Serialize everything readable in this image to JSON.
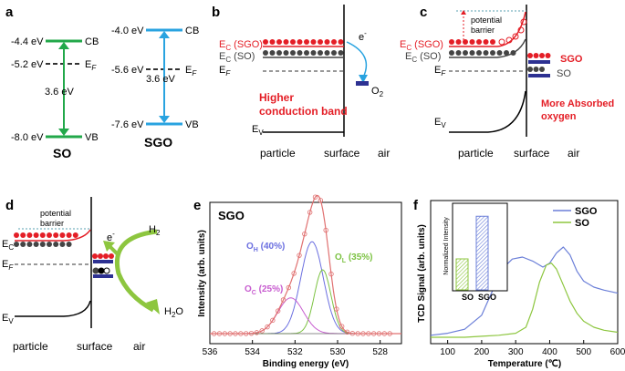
{
  "panels": {
    "a": {
      "letter": "a",
      "so": {
        "cb": "-4.4 eV",
        "ef": "-5.2 eV",
        "vb": "-8.0 eV",
        "gap": "3.6 eV",
        "name": "SO"
      },
      "sgo": {
        "cb": "-4.0 eV",
        "ef": "-5.6 eV",
        "vb": "-7.6 eV",
        "gap": "3.6 eV",
        "name": "SGO"
      },
      "cb_label": "CB",
      "ef_label": "E",
      "ef_sub": "F",
      "vb_label": "VB"
    },
    "b": {
      "letter": "b",
      "ec_sgo": "E",
      "ec_sgo_sub": "C",
      "ec_sgo_suffix": " (SGO)",
      "ec_so": "E",
      "ec_so_sub": "C",
      "ec_so_suffix": " (SO)",
      "ef": "E",
      "ef_sub": "F",
      "ev": "E",
      "ev_sub": "V",
      "electron": "e",
      "electron_sup": "-",
      "o2": "O",
      "o2_sub": "2",
      "note_line1": "Higher",
      "note_line2": "conduction band",
      "x_particle": "particle",
      "x_surface": "surface",
      "x_air": "air"
    },
    "c": {
      "letter": "c",
      "barrier_line1": "potential",
      "barrier_line2": "barrier",
      "ec_sgo": "E",
      "ec_sgo_sub": "C",
      "ec_sgo_suffix": " (SGO)",
      "ec_so": "E",
      "ec_so_sub": "C",
      "ec_so_suffix": " (SO)",
      "ef": "E",
      "ef_sub": "F",
      "ev": "E",
      "ev_sub": "V",
      "sgo_label": "SGO",
      "so_label": "SO",
      "note_line1": "More Absorbed",
      "note_line2": "oxygen",
      "x_particle": "particle",
      "x_surface": "surface",
      "x_air": "air"
    },
    "d": {
      "letter": "d",
      "barrier_line1": "potential",
      "barrier_line2": "barrier",
      "ec": "E",
      "ec_sub": "C",
      "ef": "E",
      "ef_sub": "F",
      "ev": "E",
      "ev_sub": "V",
      "electron": "e",
      "electron_sup": "-",
      "h2": "H",
      "h2_sub": "2",
      "h2o_a": "H",
      "h2o_sub": "2",
      "h2o_b": "O",
      "x_particle": "particle",
      "x_surface": "surface",
      "x_air": "air"
    },
    "e": {
      "letter": "e",
      "title": "SGO",
      "ylabel": "Intensity (arb. units)",
      "xlabel": "Binding energy (eV)",
      "oh_a": "O",
      "oh_sub": "H",
      "oh_b": " (40%)",
      "ol_a": "O",
      "ol_sub": "L",
      "ol_b": " (35%)",
      "oc_a": "O",
      "oc_sub": "C",
      "oc_b": " (25%)",
      "ticks": [
        "536",
        "534",
        "532",
        "530",
        "528"
      ]
    },
    "f": {
      "letter": "f",
      "ylabel": "TCD Signal (arb. units)",
      "xlabel": "Temperature (℃)",
      "legend_sgo": "SGO",
      "legend_so": "SO",
      "inset_ylabel": "Normalized Intensity",
      "inset_x_so": "SO",
      "inset_x_sgo": "SGO",
      "ticks": [
        "100",
        "200",
        "300",
        "400",
        "500",
        "600"
      ]
    }
  },
  "colors": {
    "green": "#22a84a",
    "blue": "#29a3e0",
    "red": "#e41e26",
    "navy": "#2d3192",
    "grey": "#444444",
    "ygreen": "#8dc63f",
    "sgo_line": "#6b7fd8",
    "so_line": "#8dc63f",
    "oh": "#6b6fe0",
    "ol": "#7cc242",
    "oc": "#c75ccf",
    "fit": "#e07070"
  },
  "chart_data": [
    {
      "type": "line",
      "title": "SGO",
      "xlabel": "Binding energy (eV)",
      "ylabel": "Intensity (arb. units)",
      "xlim": [
        536,
        527
      ],
      "series": [
        {
          "name": "O_H (40%)",
          "center": 531.2,
          "width": 0.75,
          "height": 0.72
        },
        {
          "name": "O_L (35%)",
          "center": 530.7,
          "width": 0.55,
          "height": 0.5
        },
        {
          "name": "O_C (25%)",
          "center": 532.2,
          "width": 0.85,
          "height": 0.28
        }
      ]
    },
    {
      "type": "line",
      "xlabel": "Temperature (℃)",
      "ylabel": "TCD Signal (arb. units)",
      "xlim": [
        50,
        600
      ],
      "series": [
        {
          "name": "SGO",
          "x": [
            50,
            100,
            150,
            200,
            230,
            260,
            290,
            320,
            350,
            380,
            400,
            420,
            440,
            460,
            480,
            500,
            530,
            560,
            600
          ],
          "y": [
            0.02,
            0.04,
            0.08,
            0.22,
            0.45,
            0.68,
            0.78,
            0.8,
            0.76,
            0.7,
            0.74,
            0.84,
            0.9,
            0.82,
            0.66,
            0.56,
            0.5,
            0.47,
            0.44
          ]
        },
        {
          "name": "SO",
          "x": [
            50,
            100,
            150,
            200,
            250,
            300,
            330,
            350,
            370,
            390,
            405,
            420,
            440,
            460,
            480,
            500,
            530,
            560,
            600
          ],
          "y": [
            0.0,
            0.0,
            0.0,
            0.01,
            0.02,
            0.04,
            0.1,
            0.28,
            0.55,
            0.72,
            0.74,
            0.68,
            0.52,
            0.36,
            0.24,
            0.16,
            0.1,
            0.07,
            0.05
          ]
        }
      ]
    },
    {
      "type": "bar",
      "ylabel": "Normalized Intensity",
      "categories": [
        "SO",
        "SGO"
      ],
      "values": [
        0.4,
        0.95
      ]
    }
  ]
}
